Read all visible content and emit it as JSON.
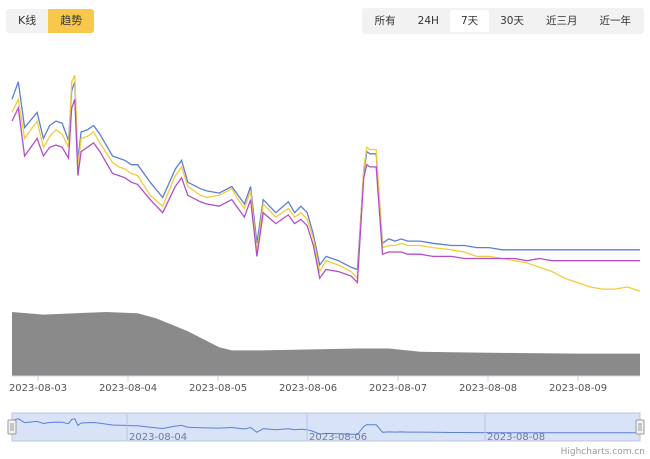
{
  "toolbar": {
    "chart_tabs": [
      {
        "label": "K线",
        "active": false
      },
      {
        "label": "趋势",
        "active": true
      }
    ],
    "ranges": [
      {
        "label": "所有",
        "active": false
      },
      {
        "label": "24H",
        "active": false
      },
      {
        "label": "7天",
        "active": true
      },
      {
        "label": "30天",
        "active": false
      },
      {
        "label": "近三月",
        "active": false
      },
      {
        "label": "近一年",
        "active": false
      }
    ]
  },
  "credit": "Highcharts.com.cn",
  "colors": {
    "accent": "#f7c84b",
    "blue": "#5b7fd6",
    "yellow": "#f2cc3c",
    "purple": "#b24fc8",
    "volume": "#8a8a8a",
    "navigator_mask": "#c9d7f3"
  },
  "chart_data": {
    "type": "line",
    "x_tick_labels": [
      "2023-08-03",
      "2023-08-04",
      "2023-08-05",
      "2023-08-06",
      "2023-08-07",
      "2023-08-08",
      "2023-08-09"
    ],
    "x_range": [
      "2023-08-02T20:00",
      "2023-08-09T12:00"
    ],
    "y_axis_visible": false,
    "series": [
      {
        "key": "blue",
        "color": "#5b7fd6",
        "x": [
          0,
          0.01,
          0.02,
          0.04,
          0.05,
          0.06,
          0.07,
          0.08,
          0.09,
          0.095,
          0.1,
          0.105,
          0.11,
          0.12,
          0.13,
          0.14,
          0.16,
          0.17,
          0.18,
          0.19,
          0.2,
          0.22,
          0.24,
          0.26,
          0.27,
          0.28,
          0.3,
          0.31,
          0.33,
          0.35,
          0.36,
          0.37,
          0.38,
          0.39,
          0.4,
          0.42,
          0.44,
          0.45,
          0.46,
          0.47,
          0.48,
          0.49,
          0.5,
          0.52,
          0.54,
          0.55,
          0.56,
          0.565,
          0.57,
          0.58,
          0.59,
          0.6,
          0.61,
          0.62,
          0.63,
          0.65,
          0.67,
          0.7,
          0.72,
          0.74,
          0.76,
          0.78,
          0.8,
          0.82,
          0.84,
          0.86,
          0.88,
          0.9,
          0.92,
          0.94,
          0.96,
          0.98,
          1.0
        ],
        "y": [
          82,
          90,
          69,
          76,
          64,
          70,
          72,
          71,
          63,
          86,
          90,
          54,
          67,
          68,
          70,
          66,
          56,
          55,
          54,
          52,
          52,
          44,
          37,
          50,
          54,
          44,
          41,
          40,
          39,
          42,
          38,
          34,
          42,
          16,
          36,
          30,
          35,
          30,
          33,
          30,
          20,
          6,
          10,
          8,
          5,
          4,
          48,
          58,
          57,
          57,
          16,
          18,
          17,
          18,
          17,
          17,
          16,
          15,
          15,
          14,
          14,
          13,
          13,
          13,
          13,
          13,
          13,
          13,
          13,
          13,
          13,
          13,
          13
        ]
      },
      {
        "key": "yellow",
        "color": "#f2cc3c",
        "x": [
          0,
          0.01,
          0.02,
          0.04,
          0.05,
          0.06,
          0.07,
          0.08,
          0.09,
          0.095,
          0.1,
          0.105,
          0.11,
          0.12,
          0.13,
          0.14,
          0.16,
          0.17,
          0.18,
          0.19,
          0.2,
          0.22,
          0.24,
          0.26,
          0.27,
          0.28,
          0.3,
          0.31,
          0.33,
          0.35,
          0.36,
          0.37,
          0.38,
          0.39,
          0.4,
          0.42,
          0.44,
          0.45,
          0.46,
          0.47,
          0.48,
          0.49,
          0.5,
          0.52,
          0.54,
          0.55,
          0.56,
          0.565,
          0.57,
          0.58,
          0.59,
          0.6,
          0.61,
          0.62,
          0.63,
          0.65,
          0.67,
          0.7,
          0.72,
          0.74,
          0.76,
          0.78,
          0.8,
          0.82,
          0.84,
          0.86,
          0.88,
          0.9,
          0.92,
          0.94,
          0.96,
          0.98,
          1.0
        ],
        "y": [
          76,
          82,
          64,
          72,
          60,
          65,
          68,
          66,
          60,
          90,
          93,
          51,
          64,
          65,
          67,
          62,
          53,
          51,
          50,
          48,
          47,
          38,
          33,
          47,
          51,
          42,
          38,
          37,
          38,
          41,
          36,
          32,
          40,
          12,
          34,
          28,
          32,
          28,
          30,
          27,
          18,
          3,
          8,
          6,
          3,
          0,
          50,
          60,
          59,
          59,
          14,
          15,
          15,
          16,
          15,
          15,
          14,
          13,
          12,
          10,
          10,
          9,
          8,
          7,
          5,
          3,
          0,
          -2,
          -4,
          -5,
          -5,
          -4,
          -6
        ]
      },
      {
        "key": "purple",
        "color": "#b24fc8",
        "x": [
          0,
          0.01,
          0.02,
          0.04,
          0.05,
          0.06,
          0.07,
          0.08,
          0.09,
          0.095,
          0.1,
          0.105,
          0.11,
          0.12,
          0.13,
          0.14,
          0.16,
          0.17,
          0.18,
          0.19,
          0.2,
          0.22,
          0.24,
          0.26,
          0.27,
          0.28,
          0.3,
          0.31,
          0.33,
          0.35,
          0.36,
          0.37,
          0.38,
          0.39,
          0.4,
          0.42,
          0.44,
          0.45,
          0.46,
          0.47,
          0.48,
          0.49,
          0.5,
          0.52,
          0.54,
          0.55,
          0.56,
          0.565,
          0.57,
          0.58,
          0.59,
          0.6,
          0.61,
          0.62,
          0.63,
          0.65,
          0.67,
          0.7,
          0.72,
          0.74,
          0.76,
          0.78,
          0.8,
          0.82,
          0.84,
          0.86,
          0.88,
          0.9,
          0.92,
          0.94,
          0.96,
          0.98,
          1.0
        ],
        "y": [
          72,
          78,
          56,
          64,
          56,
          60,
          61,
          60,
          55,
          78,
          82,
          47,
          58,
          60,
          62,
          58,
          48,
          47,
          46,
          44,
          43,
          36,
          30,
          42,
          46,
          38,
          35,
          34,
          33,
          36,
          32,
          28,
          36,
          10,
          30,
          25,
          29,
          25,
          27,
          24,
          15,
          0,
          4,
          3,
          1,
          -2,
          46,
          52,
          51,
          51,
          11,
          12,
          12,
          12,
          11,
          11,
          10,
          10,
          9,
          9,
          9,
          9,
          9,
          8,
          9,
          8,
          8,
          8,
          8,
          8,
          8,
          8,
          8
        ]
      }
    ],
    "volume": {
      "color": "#8a8a8a",
      "x": [
        0,
        0.05,
        0.1,
        0.15,
        0.2,
        0.23,
        0.28,
        0.33,
        0.35,
        0.4,
        0.45,
        0.5,
        0.55,
        0.6,
        0.65,
        0.7,
        0.8,
        0.9,
        1.0
      ],
      "y": [
        100,
        96,
        98,
        100,
        98,
        90,
        70,
        45,
        40,
        40,
        41,
        42,
        43,
        43,
        38,
        37,
        36,
        35,
        35
      ]
    },
    "navigator": {
      "x_tick_labels": [
        "2023-08-04",
        "2023-08-06",
        "2023-08-08"
      ],
      "series_color": "#5b7fd6"
    }
  }
}
